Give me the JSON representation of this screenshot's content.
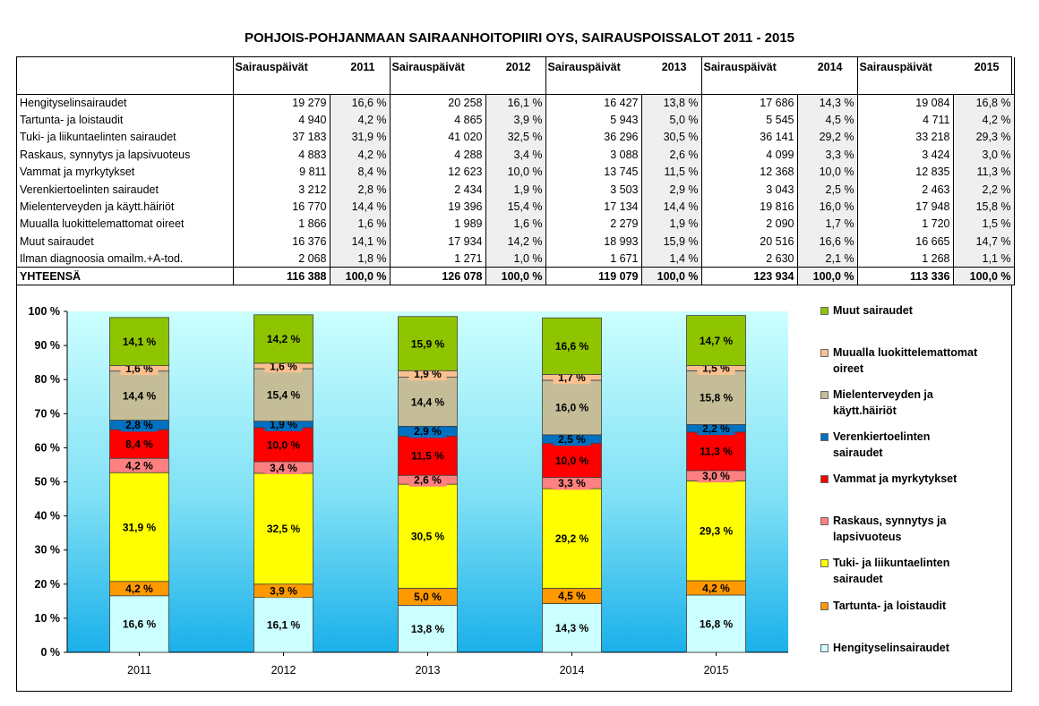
{
  "title": "POHJOIS-POHJANMAAN SAIRAANHOITOPIIRI OYS, SAIRAUSPOISSALOT 2011 - 2015",
  "table": {
    "headers": [
      {
        "days": "Sairauspäivät",
        "year": "2011"
      },
      {
        "days": "Sairauspäivät",
        "year": "2012"
      },
      {
        "days": "Sairauspäivät",
        "year": "2013"
      },
      {
        "days": "Sairauspäivät",
        "year": "2014"
      },
      {
        "days": "Sairauspäivät",
        "year": "2015"
      }
    ],
    "rows": [
      {
        "label": "Hengityselinsairaudet",
        "cells": [
          [
            "19 279",
            "16,6 %"
          ],
          [
            "20 258",
            "16,1 %"
          ],
          [
            "16 427",
            "13,8 %"
          ],
          [
            "17 686",
            "14,3 %"
          ],
          [
            "19 084",
            "16,8 %"
          ]
        ]
      },
      {
        "label": "Tartunta- ja loistaudit",
        "cells": [
          [
            "4 940",
            "4,2 %"
          ],
          [
            "4 865",
            "3,9 %"
          ],
          [
            "5 943",
            "5,0 %"
          ],
          [
            "5 545",
            "4,5 %"
          ],
          [
            "4 711",
            "4,2 %"
          ]
        ]
      },
      {
        "label": "Tuki- ja liikuntaelinten sairaudet",
        "cells": [
          [
            "37 183",
            "31,9 %"
          ],
          [
            "41 020",
            "32,5 %"
          ],
          [
            "36 296",
            "30,5 %"
          ],
          [
            "36 141",
            "29,2 %"
          ],
          [
            "33 218",
            "29,3 %"
          ]
        ]
      },
      {
        "label": "Raskaus, synnytys ja lapsivuoteus",
        "cells": [
          [
            "4 883",
            "4,2 %"
          ],
          [
            "4 288",
            "3,4 %"
          ],
          [
            "3 088",
            "2,6 %"
          ],
          [
            "4 099",
            "3,3 %"
          ],
          [
            "3 424",
            "3,0 %"
          ]
        ]
      },
      {
        "label": "Vammat ja myrkytykset",
        "cells": [
          [
            "9 811",
            "8,4 %"
          ],
          [
            "12 623",
            "10,0 %"
          ],
          [
            "13 745",
            "11,5 %"
          ],
          [
            "12 368",
            "10,0 %"
          ],
          [
            "12 835",
            "11,3 %"
          ]
        ]
      },
      {
        "label": "Verenkiertoelinten sairaudet",
        "cells": [
          [
            "3 212",
            "2,8 %"
          ],
          [
            "2 434",
            "1,9 %"
          ],
          [
            "3 503",
            "2,9 %"
          ],
          [
            "3 043",
            "2,5 %"
          ],
          [
            "2 463",
            "2,2 %"
          ]
        ]
      },
      {
        "label": "Mielenterveyden ja käytt.häiriöt",
        "cells": [
          [
            "16 770",
            "14,4 %"
          ],
          [
            "19 396",
            "15,4 %"
          ],
          [
            "17 134",
            "14,4 %"
          ],
          [
            "19 816",
            "16,0 %"
          ],
          [
            "17 948",
            "15,8 %"
          ]
        ]
      },
      {
        "label": "Muualla luokittelemattomat oireet",
        "cells": [
          [
            "1 866",
            "1,6 %"
          ],
          [
            "1 989",
            "1,6 %"
          ],
          [
            "2 279",
            "1,9 %"
          ],
          [
            "2 090",
            "1,7 %"
          ],
          [
            "1 720",
            "1,5 %"
          ]
        ]
      },
      {
        "label": "Muut sairaudet",
        "cells": [
          [
            "16 376",
            "14,1 %"
          ],
          [
            "17 934",
            "14,2 %"
          ],
          [
            "18 993",
            "15,9 %"
          ],
          [
            "20 516",
            "16,6 %"
          ],
          [
            "16 665",
            "14,7 %"
          ]
        ]
      },
      {
        "label": "Ilman diagnoosia omailm.+A-tod.",
        "cells": [
          [
            "2 068",
            "1,8 %"
          ],
          [
            "1 271",
            "1,0 %"
          ],
          [
            "1 671",
            "1,4 %"
          ],
          [
            "2 630",
            "2,1 %"
          ],
          [
            "1 268",
            "1,1 %"
          ]
        ]
      }
    ],
    "total": {
      "label": "YHTEENSÄ",
      "cells": [
        [
          "116 388",
          "100,0 %"
        ],
        [
          "126 078",
          "100,0 %"
        ],
        [
          "119 079",
          "100,0 %"
        ],
        [
          "123 934",
          "100,0 %"
        ],
        [
          "113 336",
          "100,0 %"
        ]
      ]
    }
  },
  "chart_data": {
    "type": "bar",
    "stacked": true,
    "categories": [
      "2011",
      "2012",
      "2013",
      "2014",
      "2015"
    ],
    "ylim": [
      0,
      100
    ],
    "yticks": [
      "0 %",
      "10 %",
      "20 %",
      "30 %",
      "40 %",
      "50 %",
      "60 %",
      "70 %",
      "80 %",
      "90 %",
      "100 %"
    ],
    "legend_position": "right",
    "series": [
      {
        "name": "Hengityselinsairaudet",
        "color": "#ccffff",
        "values": [
          16.6,
          16.1,
          13.8,
          14.3,
          16.8
        ],
        "labels": [
          "16,6 %",
          "16,1 %",
          "13,8 %",
          "14,3 %",
          "16,8 %"
        ]
      },
      {
        "name": "Tartunta- ja loistaudit",
        "color": "#ff9900",
        "values": [
          4.2,
          3.9,
          5.0,
          4.5,
          4.2
        ],
        "labels": [
          "4,2 %",
          "3,9 %",
          "5,0 %",
          "4,5 %",
          "4,2 %"
        ]
      },
      {
        "name": "Tuki- ja liikuntaelinten sairaudet",
        "color": "#ffff00",
        "values": [
          31.9,
          32.5,
          30.5,
          29.2,
          29.3
        ],
        "labels": [
          "31,9 %",
          "32,5 %",
          "30,5 %",
          "29,2 %",
          "29,3 %"
        ]
      },
      {
        "name": "Raskaus, synnytys ja lapsivuoteus",
        "color": "#ff8080",
        "values": [
          4.2,
          3.4,
          2.6,
          3.3,
          3.0
        ],
        "labels": [
          "4,2 %",
          "3,4 %",
          "2,6 %",
          "3,3 %",
          "3,0 %"
        ]
      },
      {
        "name": "Vammat ja myrkytykset",
        "color": "#ff0000",
        "values": [
          8.4,
          10.0,
          11.5,
          10.0,
          11.3
        ],
        "labels": [
          "8,4 %",
          "10,0 %",
          "11,5 %",
          "10,0 %",
          "11,3 %"
        ]
      },
      {
        "name": "Verenkiertoelinten sairaudet",
        "color": "#0070c0",
        "values": [
          2.8,
          1.9,
          2.9,
          2.5,
          2.2
        ],
        "labels": [
          "2,8 %",
          "1,9 %",
          "2,9 %",
          "2,5 %",
          "2,2 %"
        ]
      },
      {
        "name": "Mielenterveyden ja käytt.häiriöt",
        "color": "#c4bd97",
        "values": [
          14.4,
          15.4,
          14.4,
          16.0,
          15.8
        ],
        "labels": [
          "14,4 %",
          "15,4 %",
          "14,4 %",
          "16,0 %",
          "15,8 %"
        ]
      },
      {
        "name": "Muualla luokittelemattomat oireet",
        "color": "#fac090",
        "values": [
          1.6,
          1.6,
          1.9,
          1.7,
          1.5
        ],
        "labels": [
          "1,6 %",
          "1,6 %",
          "1,9 %",
          "1,7 %",
          "1,5 %"
        ]
      },
      {
        "name": "Muut sairaudet",
        "color": "#8fc400",
        "values": [
          14.1,
          14.2,
          15.9,
          16.6,
          14.7
        ],
        "labels": [
          "14,1 %",
          "14,2 %",
          "15,9 %",
          "16,6 %",
          "14,7 %"
        ]
      }
    ],
    "legend_labels": [
      {
        "series": "Muut sairaudet",
        "lines": [
          "Muut sairaudet"
        ]
      },
      {
        "series": "Muualla luokittelemattomat oireet",
        "lines": [
          "Muualla luokittelemattomat",
          "oireet"
        ]
      },
      {
        "series": "Mielenterveyden ja käytt.häiriöt",
        "lines": [
          "Mielenterveyden ja",
          "käytt.häiriöt"
        ]
      },
      {
        "series": "Verenkiertoelinten sairaudet",
        "lines": [
          "Verenkiertoelinten",
          "sairaudet"
        ]
      },
      {
        "series": "Vammat ja myrkytykset",
        "lines": [
          "Vammat ja myrkytykset"
        ]
      },
      {
        "series": "Raskaus, synnytys ja lapsivuoteus",
        "lines": [
          "Raskaus, synnytys ja",
          "lapsivuoteus"
        ]
      },
      {
        "series": "Tuki- ja liikuntaelinten sairaudet",
        "lines": [
          "Tuki- ja liikuntaelinten",
          "sairaudet"
        ]
      },
      {
        "series": "Tartunta- ja loistaudit",
        "lines": [
          "Tartunta- ja loistaudit"
        ]
      },
      {
        "series": "Hengityselinsairaudet",
        "lines": [
          "Hengityselinsairaudet"
        ]
      }
    ]
  }
}
